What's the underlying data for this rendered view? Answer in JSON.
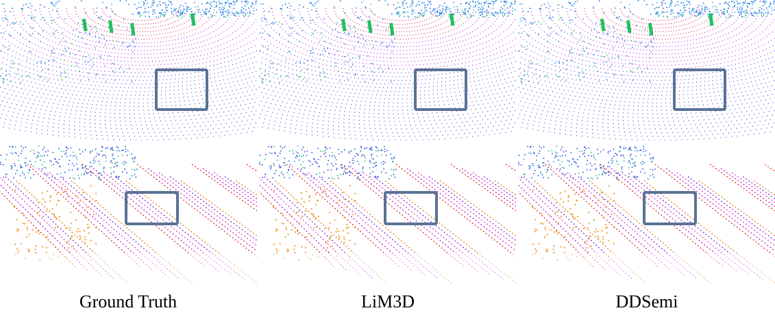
{
  "captions": [
    "Ground Truth",
    "LiM3D",
    "DDSemi"
  ]
}
